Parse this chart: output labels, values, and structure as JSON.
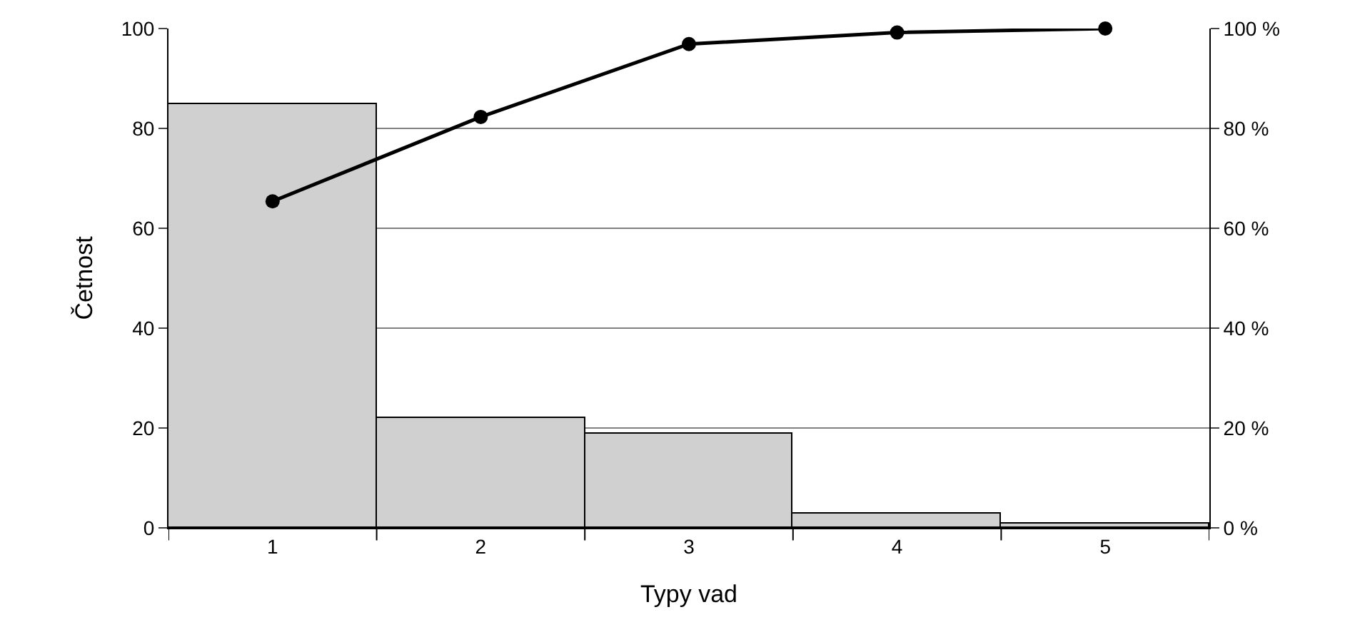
{
  "chart_data": {
    "type": "bar",
    "xlabel": "Typy vad",
    "ylabel": "Četnost",
    "categories": [
      "1",
      "2",
      "3",
      "4",
      "5"
    ],
    "series": [
      {
        "color": "#d0d0d0",
        "values": [
          85,
          22,
          19,
          3,
          1
        ]
      },
      {
        "type": "line",
        "axis": "y2",
        "color": "#000000",
        "marker": "circle",
        "line_style": "solid",
        "values": [
          65.4,
          82.3,
          96.9,
          99.2,
          100
        ]
      }
    ],
    "ylim": [
      0,
      100
    ],
    "yticks": [
      0,
      20,
      40,
      60,
      80,
      100
    ],
    "y2lim": [
      0,
      100
    ],
    "y2ticks": [
      {
        "value": 0,
        "label": "0 %"
      },
      {
        "value": 20,
        "label": "20 %"
      },
      {
        "value": 40,
        "label": "40 %"
      },
      {
        "value": 60,
        "label": "60 %"
      },
      {
        "value": 80,
        "label": "80 %"
      },
      {
        "value": 100,
        "label": "100 %"
      }
    ],
    "grid": "y"
  }
}
